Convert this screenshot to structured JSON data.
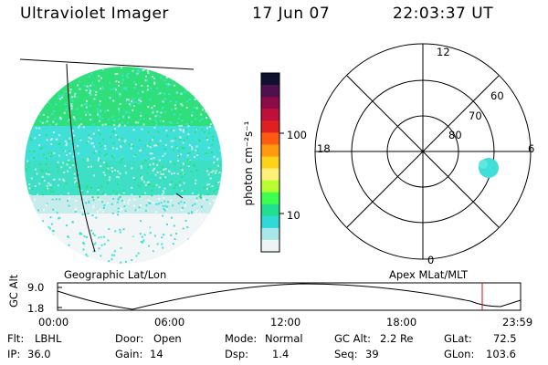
{
  "header": {
    "title": "Ultraviolet Imager",
    "date": "17 Jun 07",
    "time": "22:03:37 UT"
  },
  "colorbar": {
    "label": "photon cm⁻²s⁻¹",
    "ticks": [
      "100",
      "10"
    ],
    "colors": [
      "#101030",
      "#501050",
      "#8a0a4a",
      "#c0103a",
      "#e02020",
      "#ff5a10",
      "#ff9a10",
      "#ffd21a",
      "#fff07a",
      "#b8ff30",
      "#3cff50",
      "#20e090",
      "#30d8d8",
      "#a8e8e8",
      "#eef4f4"
    ]
  },
  "left_panel": {
    "caption": "Geographic Lat/Lon",
    "colors": {
      "green": "#2fe07a",
      "cyan": "#40e0d8",
      "pale": "#c8ecec",
      "white": "#f2f6f6"
    }
  },
  "polar_plot": {
    "caption": "Apex MLat/MLT",
    "mlt_labels": {
      "top": "12",
      "bottom": "0",
      "left": "18",
      "right": "6"
    },
    "lat_labels": [
      "60",
      "70",
      "80"
    ],
    "spot_color": "#40e0d8"
  },
  "altitude_strip": {
    "ylabel": "GC Alt",
    "yticks": [
      "9.0",
      "1.8"
    ],
    "xticks": [
      "00:00",
      "06:00",
      "12:00",
      "18:00",
      "23:59"
    ],
    "current_marker_color": "#d01010"
  },
  "status": {
    "filter_label": "Flt:",
    "filter_value": "LBHL",
    "ip_label": "IP:",
    "ip_value": "36.0",
    "door_label": "Door:",
    "door_value": "Open",
    "gain_label": "Gain:",
    "gain_value": "14",
    "mode_label": "Mode:",
    "mode_value": "Normal",
    "dsp_label": "Dsp:",
    "dsp_value": "1.4",
    "gcalt_label": "GC Alt:",
    "gcalt_value": "2.2 Re",
    "seq_label": "Seq:",
    "seq_value": "39",
    "glat_label": "GLat:",
    "glat_value": "72.5",
    "glon_label": "GLon:",
    "glon_value": "103.6"
  }
}
